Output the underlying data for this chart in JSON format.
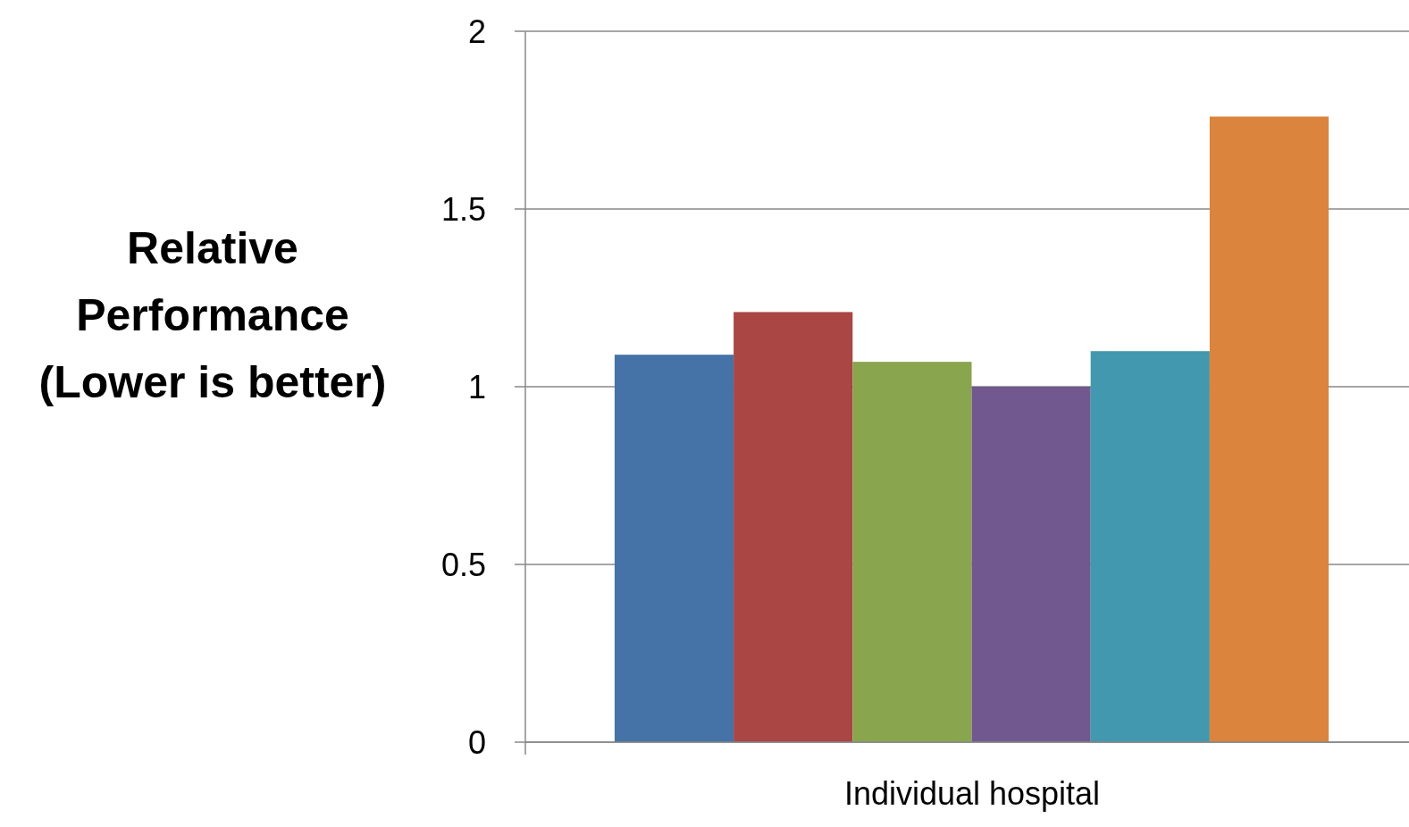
{
  "chart_data": {
    "type": "bar",
    "ylabel": "Relative Performance (Lower is better)",
    "xlabel": "Individual hospital",
    "categories": [
      null
    ],
    "series": [
      {
        "color": "#4572a7",
        "values": [
          1.09
        ]
      },
      {
        "color": "#aa4643",
        "values": [
          1.21
        ]
      },
      {
        "color": "#89a54e",
        "values": [
          1.07
        ]
      },
      {
        "color": "#71588f",
        "values": [
          1.0
        ]
      },
      {
        "color": "#4198af",
        "values": [
          1.1
        ]
      },
      {
        "color": "#db843d",
        "values": [
          1.76
        ]
      }
    ],
    "ylim": [
      0,
      2
    ],
    "yticks": [
      0,
      0.5,
      1,
      1.5,
      2
    ],
    "grid": "y"
  }
}
